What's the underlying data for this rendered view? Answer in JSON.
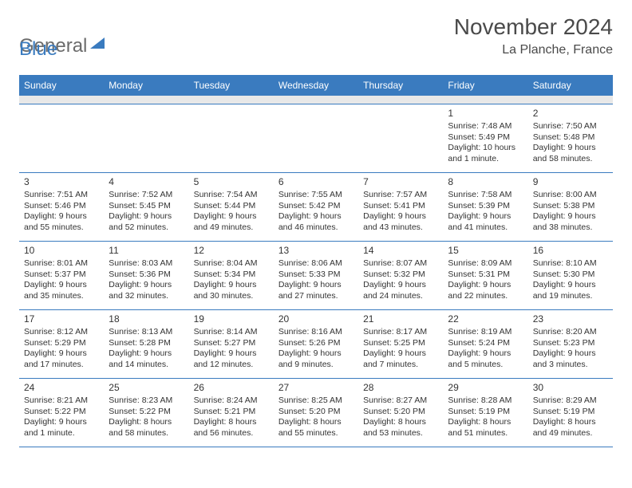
{
  "logo": {
    "part1": "General",
    "part2": "Blue"
  },
  "title": "November 2024",
  "subtitle": "La Planche, France",
  "colors": {
    "header_bg": "#3a7bbf",
    "header_text": "#ffffff",
    "row_border": "#3a7bbf",
    "spacer_bg": "#e8e8e8",
    "title_color": "#4a4a4a",
    "logo_gray": "#6b6b6b",
    "logo_blue": "#3a7bbf"
  },
  "weekdays": [
    "Sunday",
    "Monday",
    "Tuesday",
    "Wednesday",
    "Thursday",
    "Friday",
    "Saturday"
  ],
  "weeks": [
    [
      null,
      null,
      null,
      null,
      null,
      {
        "d": "1",
        "sunrise": "Sunrise: 7:48 AM",
        "sunset": "Sunset: 5:49 PM",
        "daylight": "Daylight: 10 hours and 1 minute."
      },
      {
        "d": "2",
        "sunrise": "Sunrise: 7:50 AM",
        "sunset": "Sunset: 5:48 PM",
        "daylight": "Daylight: 9 hours and 58 minutes."
      }
    ],
    [
      {
        "d": "3",
        "sunrise": "Sunrise: 7:51 AM",
        "sunset": "Sunset: 5:46 PM",
        "daylight": "Daylight: 9 hours and 55 minutes."
      },
      {
        "d": "4",
        "sunrise": "Sunrise: 7:52 AM",
        "sunset": "Sunset: 5:45 PM",
        "daylight": "Daylight: 9 hours and 52 minutes."
      },
      {
        "d": "5",
        "sunrise": "Sunrise: 7:54 AM",
        "sunset": "Sunset: 5:44 PM",
        "daylight": "Daylight: 9 hours and 49 minutes."
      },
      {
        "d": "6",
        "sunrise": "Sunrise: 7:55 AM",
        "sunset": "Sunset: 5:42 PM",
        "daylight": "Daylight: 9 hours and 46 minutes."
      },
      {
        "d": "7",
        "sunrise": "Sunrise: 7:57 AM",
        "sunset": "Sunset: 5:41 PM",
        "daylight": "Daylight: 9 hours and 43 minutes."
      },
      {
        "d": "8",
        "sunrise": "Sunrise: 7:58 AM",
        "sunset": "Sunset: 5:39 PM",
        "daylight": "Daylight: 9 hours and 41 minutes."
      },
      {
        "d": "9",
        "sunrise": "Sunrise: 8:00 AM",
        "sunset": "Sunset: 5:38 PM",
        "daylight": "Daylight: 9 hours and 38 minutes."
      }
    ],
    [
      {
        "d": "10",
        "sunrise": "Sunrise: 8:01 AM",
        "sunset": "Sunset: 5:37 PM",
        "daylight": "Daylight: 9 hours and 35 minutes."
      },
      {
        "d": "11",
        "sunrise": "Sunrise: 8:03 AM",
        "sunset": "Sunset: 5:36 PM",
        "daylight": "Daylight: 9 hours and 32 minutes."
      },
      {
        "d": "12",
        "sunrise": "Sunrise: 8:04 AM",
        "sunset": "Sunset: 5:34 PM",
        "daylight": "Daylight: 9 hours and 30 minutes."
      },
      {
        "d": "13",
        "sunrise": "Sunrise: 8:06 AM",
        "sunset": "Sunset: 5:33 PM",
        "daylight": "Daylight: 9 hours and 27 minutes."
      },
      {
        "d": "14",
        "sunrise": "Sunrise: 8:07 AM",
        "sunset": "Sunset: 5:32 PM",
        "daylight": "Daylight: 9 hours and 24 minutes."
      },
      {
        "d": "15",
        "sunrise": "Sunrise: 8:09 AM",
        "sunset": "Sunset: 5:31 PM",
        "daylight": "Daylight: 9 hours and 22 minutes."
      },
      {
        "d": "16",
        "sunrise": "Sunrise: 8:10 AM",
        "sunset": "Sunset: 5:30 PM",
        "daylight": "Daylight: 9 hours and 19 minutes."
      }
    ],
    [
      {
        "d": "17",
        "sunrise": "Sunrise: 8:12 AM",
        "sunset": "Sunset: 5:29 PM",
        "daylight": "Daylight: 9 hours and 17 minutes."
      },
      {
        "d": "18",
        "sunrise": "Sunrise: 8:13 AM",
        "sunset": "Sunset: 5:28 PM",
        "daylight": "Daylight: 9 hours and 14 minutes."
      },
      {
        "d": "19",
        "sunrise": "Sunrise: 8:14 AM",
        "sunset": "Sunset: 5:27 PM",
        "daylight": "Daylight: 9 hours and 12 minutes."
      },
      {
        "d": "20",
        "sunrise": "Sunrise: 8:16 AM",
        "sunset": "Sunset: 5:26 PM",
        "daylight": "Daylight: 9 hours and 9 minutes."
      },
      {
        "d": "21",
        "sunrise": "Sunrise: 8:17 AM",
        "sunset": "Sunset: 5:25 PM",
        "daylight": "Daylight: 9 hours and 7 minutes."
      },
      {
        "d": "22",
        "sunrise": "Sunrise: 8:19 AM",
        "sunset": "Sunset: 5:24 PM",
        "daylight": "Daylight: 9 hours and 5 minutes."
      },
      {
        "d": "23",
        "sunrise": "Sunrise: 8:20 AM",
        "sunset": "Sunset: 5:23 PM",
        "daylight": "Daylight: 9 hours and 3 minutes."
      }
    ],
    [
      {
        "d": "24",
        "sunrise": "Sunrise: 8:21 AM",
        "sunset": "Sunset: 5:22 PM",
        "daylight": "Daylight: 9 hours and 1 minute."
      },
      {
        "d": "25",
        "sunrise": "Sunrise: 8:23 AM",
        "sunset": "Sunset: 5:22 PM",
        "daylight": "Daylight: 8 hours and 58 minutes."
      },
      {
        "d": "26",
        "sunrise": "Sunrise: 8:24 AM",
        "sunset": "Sunset: 5:21 PM",
        "daylight": "Daylight: 8 hours and 56 minutes."
      },
      {
        "d": "27",
        "sunrise": "Sunrise: 8:25 AM",
        "sunset": "Sunset: 5:20 PM",
        "daylight": "Daylight: 8 hours and 55 minutes."
      },
      {
        "d": "28",
        "sunrise": "Sunrise: 8:27 AM",
        "sunset": "Sunset: 5:20 PM",
        "daylight": "Daylight: 8 hours and 53 minutes."
      },
      {
        "d": "29",
        "sunrise": "Sunrise: 8:28 AM",
        "sunset": "Sunset: 5:19 PM",
        "daylight": "Daylight: 8 hours and 51 minutes."
      },
      {
        "d": "30",
        "sunrise": "Sunrise: 8:29 AM",
        "sunset": "Sunset: 5:19 PM",
        "daylight": "Daylight: 8 hours and 49 minutes."
      }
    ]
  ]
}
